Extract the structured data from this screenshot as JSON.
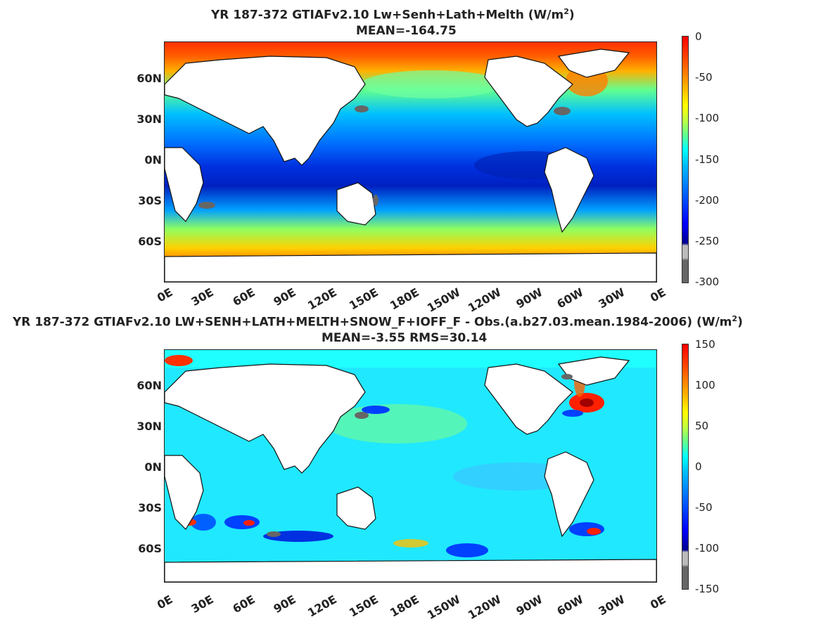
{
  "panel1": {
    "title": "YR 187-372 GTIAFv2.10 Lw+Senh+Lath+Melth (W/m",
    "title_sup": "2",
    "title_end": ")",
    "mean": "MEAN=-164.75",
    "colorbar": [
      "0",
      "-50",
      "-100",
      "-150",
      "-200",
      "-250",
      "-300"
    ]
  },
  "panel2": {
    "title": "YR 187-372 GTIAFv2.10 LW+SENH+LATH+MELTH+SNOW_F+IOFF_F - Obs.(a.b27.03.mean.1984-2006) (W/m",
    "title_sup": "2",
    "title_end": ")",
    "mean": "MEAN=-3.55 RMS=30.14",
    "colorbar": [
      "150",
      "100",
      "50",
      "0",
      "-50",
      "-100",
      "-150"
    ]
  },
  "lat_labels": [
    "60N",
    "30N",
    "0N",
    "30S",
    "60S"
  ],
  "lon_labels": [
    "0E",
    "30E",
    "60E",
    "90E",
    "120E",
    "150E",
    "180E",
    "150W",
    "120W",
    "90W",
    "60W",
    "30W",
    "0E"
  ],
  "colors": {
    "jet_dark_red": "#800000",
    "jet_red": "#ff0000",
    "jet_orange": "#ff8000",
    "jet_yellow": "#ffff00",
    "jet_cyan": "#00ffff",
    "jet_blue": "#0080ff",
    "jet_dark_blue": "#00008f",
    "land": "#ffffff",
    "ice": "#666666"
  }
}
